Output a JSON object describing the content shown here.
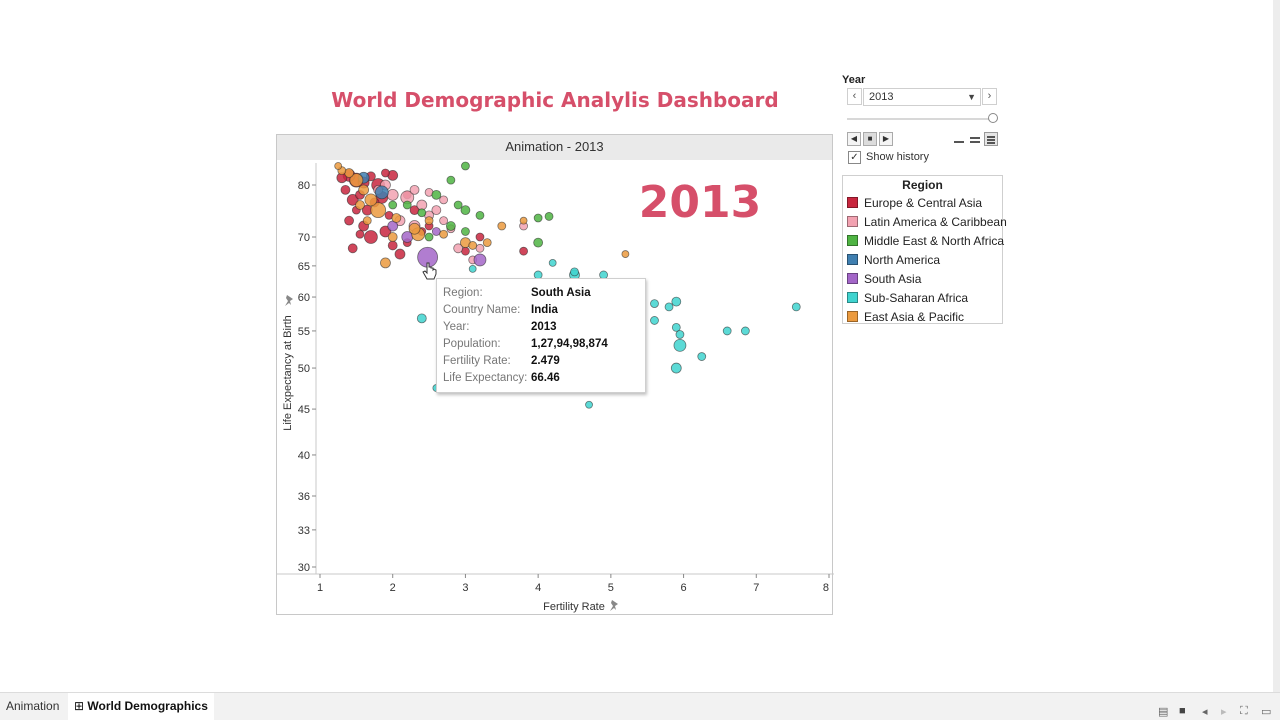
{
  "dashboard": {
    "title": "World Demographic Analylis Dashboard",
    "title_color": "#d64f6a"
  },
  "chart": {
    "header": "Animation - 2013",
    "big_year": "2013",
    "big_year_color": "#d64f6a"
  },
  "controls": {
    "year_label": "Year",
    "year_value": "2013",
    "show_history_label": "Show history",
    "show_history_checked": true,
    "prev_icon": "chevron-left-icon",
    "next_icon": "chevron-right-icon"
  },
  "legend": {
    "title": "Region",
    "items": [
      {
        "label": "Europe & Central Asia",
        "color": "#c8263e"
      },
      {
        "label": "Latin America & Caribbean",
        "color": "#f2a2b1"
      },
      {
        "label": "Middle East & North Africa",
        "color": "#4fb443"
      },
      {
        "label": "North America",
        "color": "#3f7fb0"
      },
      {
        "label": "South Asia",
        "color": "#a366c8"
      },
      {
        "label": "Sub-Saharan Africa",
        "color": "#3fd3cf"
      },
      {
        "label": "East Asia & Pacific",
        "color": "#eb9a3e"
      }
    ]
  },
  "tooltip": {
    "rows": [
      {
        "key": "Region:",
        "value": "South Asia"
      },
      {
        "key": "Country Name:",
        "value": "India"
      },
      {
        "key": "Year:",
        "value": "2013"
      },
      {
        "key": "Population:",
        "value": "1,27,94,98,874"
      },
      {
        "key": "Fertility Rate:",
        "value": "2.479"
      },
      {
        "key": "Life Expectancy:",
        "value": "66.46"
      }
    ]
  },
  "tabs": [
    {
      "label": "Animation",
      "active": false
    },
    {
      "label": "World Demographics",
      "active": true
    }
  ],
  "chart_data": {
    "type": "scatter",
    "title": "Animation - 2013",
    "xlabel": "Fertility Rate",
    "ylabel": "Life Expectancy at Birth",
    "xlim": [
      1,
      8
    ],
    "ylim": [
      30,
      82
    ],
    "x_ticks": [
      1,
      2,
      3,
      4,
      5,
      6,
      7,
      8
    ],
    "y_ticks": [
      30,
      33,
      36,
      40,
      45,
      50,
      55,
      60,
      65,
      70,
      80
    ],
    "y_scale": "log",
    "series": [
      {
        "name": "Europe & Central Asia",
        "color": "#c8263e",
        "points": [
          [
            1.3,
            81.5,
            7
          ],
          [
            1.4,
            82,
            9
          ],
          [
            1.5,
            81,
            11
          ],
          [
            1.6,
            80.5,
            8
          ],
          [
            1.7,
            81.8,
            6
          ],
          [
            1.8,
            80,
            10
          ],
          [
            1.9,
            82.5,
            5
          ],
          [
            2.0,
            82,
            7
          ],
          [
            1.35,
            79,
            6
          ],
          [
            1.45,
            77,
            8
          ],
          [
            1.55,
            78,
            6
          ],
          [
            1.65,
            75,
            7
          ],
          [
            1.75,
            76.5,
            6
          ],
          [
            1.85,
            77.5,
            9
          ],
          [
            1.5,
            75,
            5
          ],
          [
            1.4,
            73,
            6
          ],
          [
            1.6,
            72,
            7
          ],
          [
            1.7,
            70,
            10
          ],
          [
            1.45,
            68,
            6
          ],
          [
            1.55,
            70.5,
            5
          ],
          [
            1.9,
            71,
            8
          ],
          [
            2.0,
            68.5,
            6
          ],
          [
            2.1,
            67,
            7
          ],
          [
            2.2,
            69,
            5
          ],
          [
            2.3,
            75,
            6
          ],
          [
            2.4,
            71,
            5
          ],
          [
            3.2,
            70,
            5
          ],
          [
            3.0,
            67.5,
            5
          ],
          [
            3.8,
            67.5,
            5
          ],
          [
            2.5,
            72,
            5
          ],
          [
            2.2,
            78,
            5
          ],
          [
            1.95,
            74,
            5
          ]
        ]
      },
      {
        "name": "Latin America & Caribbean",
        "color": "#f2a2b1",
        "points": [
          [
            1.9,
            80,
            7
          ],
          [
            2.0,
            78,
            8
          ],
          [
            2.2,
            77.5,
            10
          ],
          [
            2.3,
            79,
            6
          ],
          [
            2.4,
            76,
            7
          ],
          [
            2.5,
            78.5,
            5
          ],
          [
            2.6,
            75,
            6
          ],
          [
            2.1,
            73,
            7
          ],
          [
            2.3,
            72,
            8
          ],
          [
            2.5,
            74,
            6
          ],
          [
            2.7,
            73,
            5
          ],
          [
            2.8,
            71.5,
            5
          ],
          [
            2.9,
            68,
            6
          ],
          [
            3.2,
            68,
            5
          ],
          [
            3.1,
            66,
            5
          ],
          [
            3.8,
            72,
            5
          ],
          [
            1.8,
            79,
            6
          ],
          [
            2.7,
            77,
            5
          ]
        ]
      },
      {
        "name": "Middle East & North Africa",
        "color": "#4fb443",
        "points": [
          [
            3.0,
            84,
            5
          ],
          [
            2.8,
            81,
            5
          ],
          [
            2.6,
            78,
            6
          ],
          [
            2.9,
            76,
            5
          ],
          [
            3.0,
            75,
            6
          ],
          [
            3.2,
            74,
            5
          ],
          [
            2.4,
            74.5,
            5
          ],
          [
            2.2,
            76,
            5
          ],
          [
            2.8,
            72,
            6
          ],
          [
            3.0,
            71,
            5
          ],
          [
            4.0,
            73.5,
            5
          ],
          [
            4.15,
            73.8,
            5
          ],
          [
            4.0,
            69,
            6
          ],
          [
            2.0,
            76,
            5
          ],
          [
            2.5,
            70,
            5
          ]
        ]
      },
      {
        "name": "North America",
        "color": "#3f7fb0",
        "points": [
          [
            1.85,
            78.5,
            10
          ],
          [
            1.6,
            81.5,
            8
          ]
        ]
      },
      {
        "name": "South Asia",
        "color": "#a366c8",
        "points": [
          [
            2.48,
            66.46,
            17
          ],
          [
            3.2,
            66,
            9
          ],
          [
            2.2,
            70,
            8
          ],
          [
            2.0,
            72,
            7
          ],
          [
            2.6,
            71,
            5
          ]
        ]
      },
      {
        "name": "Sub-Saharan Africa",
        "color": "#3fd3cf",
        "points": [
          [
            4.5,
            64,
            5
          ],
          [
            4.5,
            63.5,
            7
          ],
          [
            4.9,
            63.5,
            5
          ],
          [
            5.6,
            59,
            5
          ],
          [
            5.8,
            58.5,
            5
          ],
          [
            5.9,
            59.3,
            6
          ],
          [
            5.6,
            56.5,
            5
          ],
          [
            5.9,
            55.5,
            5
          ],
          [
            5.95,
            53,
            9
          ],
          [
            5.95,
            54.5,
            5
          ],
          [
            6.25,
            51.5,
            5
          ],
          [
            5.9,
            50,
            7
          ],
          [
            6.6,
            55,
            5
          ],
          [
            6.85,
            55,
            5
          ],
          [
            7.55,
            58.5,
            5
          ],
          [
            2.4,
            56.8,
            6
          ],
          [
            2.6,
            47.5,
            4
          ],
          [
            4.7,
            45.5,
            4
          ],
          [
            4.0,
            63.5,
            5
          ],
          [
            4.1,
            62,
            5
          ],
          [
            3.1,
            64.5,
            4
          ],
          [
            4.2,
            65.5,
            4
          ],
          [
            5.2,
            62,
            4
          ]
        ]
      },
      {
        "name": "East Asia & Pacific",
        "color": "#eb9a3e",
        "points": [
          [
            1.4,
            82.5,
            6
          ],
          [
            1.5,
            81,
            10
          ],
          [
            1.3,
            83,
            5
          ],
          [
            1.6,
            79,
            7
          ],
          [
            1.7,
            77,
            9
          ],
          [
            1.8,
            75,
            12
          ],
          [
            1.55,
            76,
            6
          ],
          [
            1.65,
            73,
            5
          ],
          [
            2.05,
            73.5,
            6
          ],
          [
            2.3,
            71.5,
            8
          ],
          [
            2.35,
            70.5,
            10
          ],
          [
            2.5,
            73,
            5
          ],
          [
            3.0,
            69,
            7
          ],
          [
            3.1,
            68.5,
            5
          ],
          [
            3.3,
            69,
            5
          ],
          [
            3.5,
            72,
            5
          ],
          [
            1.9,
            65.5,
            7
          ],
          [
            2.0,
            70,
            6
          ],
          [
            5.2,
            67,
            4
          ],
          [
            3.8,
            73,
            4
          ],
          [
            2.7,
            70.5,
            5
          ],
          [
            1.25,
            84,
            4
          ]
        ]
      }
    ]
  }
}
